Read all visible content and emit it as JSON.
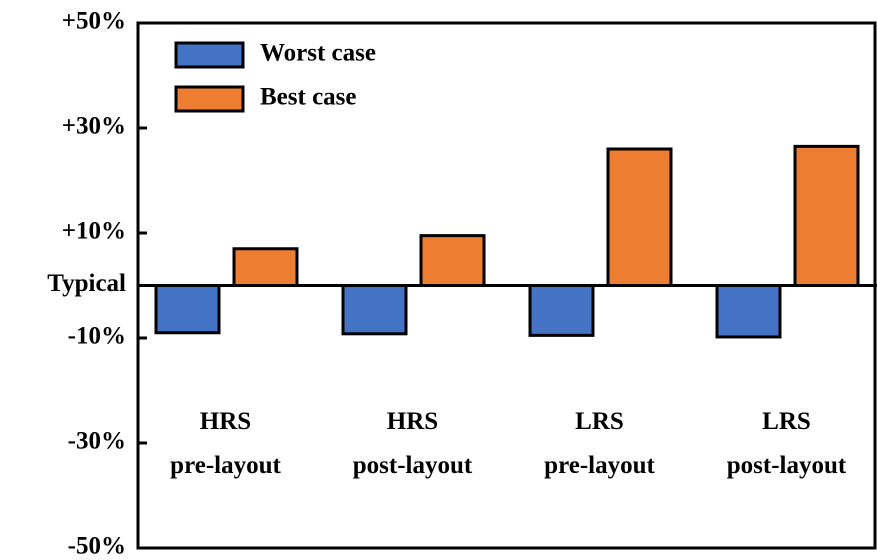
{
  "chart_data": {
    "type": "bar",
    "categories": [
      "HRS\npre-layout",
      "HRS\npost-layout",
      "LRS\npre-layout",
      "LRS\npost-layout"
    ],
    "series": [
      {
        "name": "Worst case",
        "color": "#4472c4",
        "values": [
          -9,
          -9.2,
          -9.5,
          -9.8
        ]
      },
      {
        "name": "Best case",
        "color": "#ed7d31",
        "values": [
          7,
          9.5,
          26,
          26.5
        ]
      }
    ],
    "ylim": [
      -50,
      50
    ],
    "yticks": [
      {
        "value": 50,
        "label": "+50%"
      },
      {
        "value": 30,
        "label": "+30%"
      },
      {
        "value": 10,
        "label": "+10%"
      },
      {
        "value": 0,
        "label": "Typical"
      },
      {
        "value": -10,
        "label": "-10%"
      },
      {
        "value": -30,
        "label": "-30%"
      },
      {
        "value": -50,
        "label": "-50%"
      }
    ],
    "legend": "upper-left"
  }
}
